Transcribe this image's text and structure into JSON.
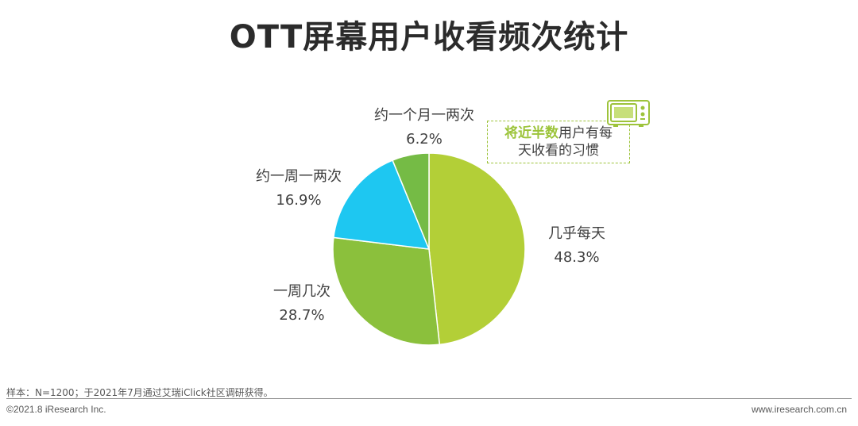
{
  "title": "OTT屏幕用户收看频次统计",
  "chart_data": {
    "type": "pie",
    "categories": [
      "几乎每天",
      "一周几次",
      "约一周一两次",
      "约一个月一两次"
    ],
    "values": [
      48.3,
      28.7,
      16.9,
      6.2
    ],
    "value_labels": [
      "48.3%",
      "28.7%",
      "16.9%",
      "6.2%"
    ],
    "colors": [
      "#b3cf37",
      "#8bc03c",
      "#1ec7f1",
      "#75bb45"
    ],
    "start": "12 o'clock",
    "direction": "clockwise"
  },
  "callout": {
    "highlight": "将近半数",
    "line1_rest": "用户有每",
    "line2": "天收看的习惯",
    "icon": "tv-icon",
    "border_color": "#9dc33b"
  },
  "footer": {
    "note": "样本：N=1200；于2021年7月通过艾瑞iClick社区调研获得。",
    "copyright": "©2021.8 iResearch Inc.",
    "site": "www.iresearch.com.cn"
  }
}
